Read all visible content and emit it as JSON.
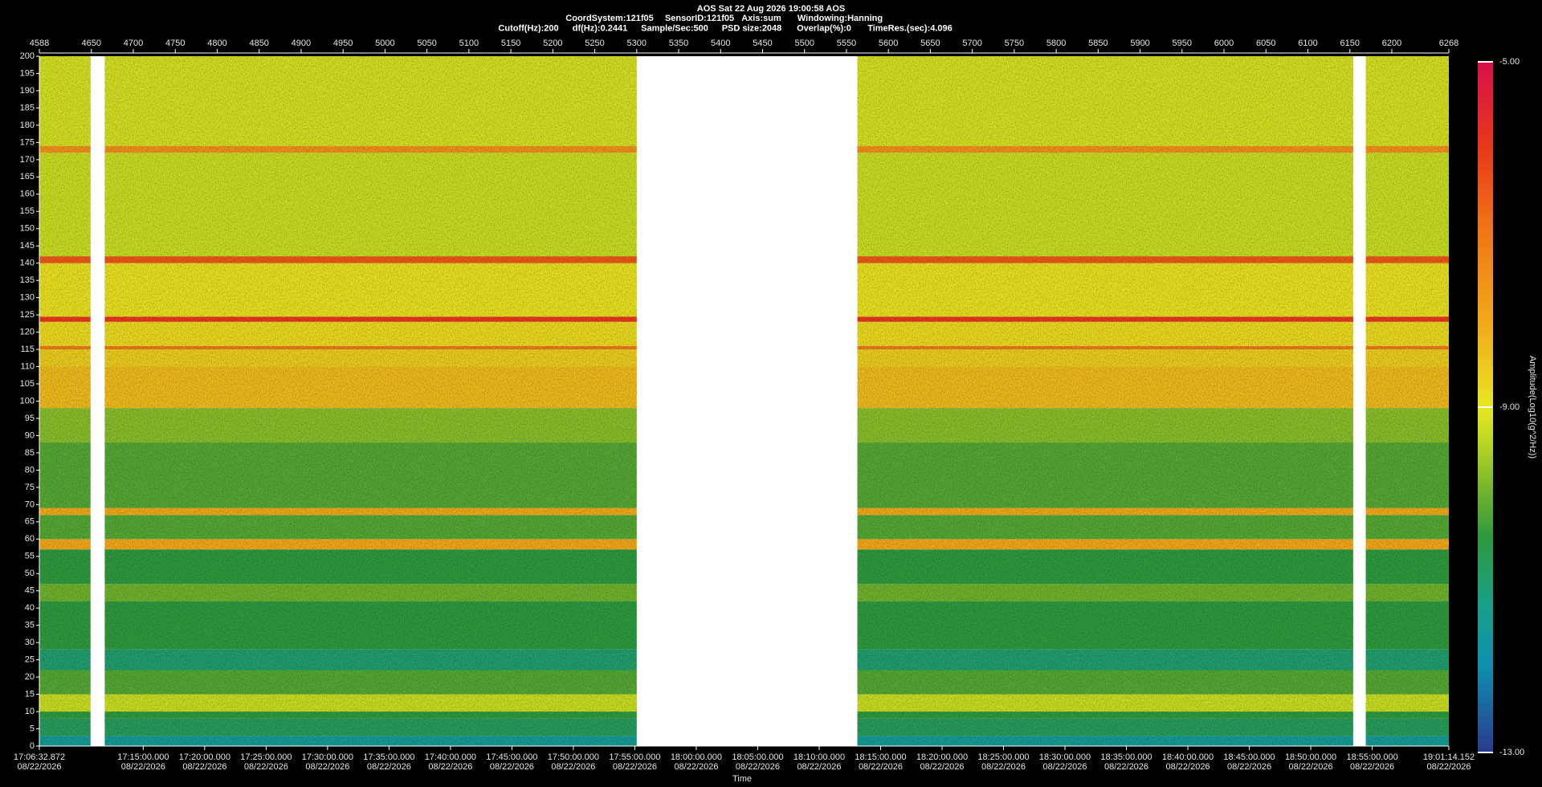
{
  "chart_data": {
    "type": "spectrogram",
    "title": "AOS  Sat 22 Aug 2026 19:00:58  AOS",
    "info_lines": [
      [
        "CoordSystem:121f05",
        "SensorID:121f05",
        "Axis:sum",
        "Windowing:Hanning"
      ],
      [
        "Cutoff(Hz):200",
        "df(Hz):0.2441",
        "Sample/Sec:500",
        "PSD size:2048",
        "Overlap(%):0",
        "TimeRes.(sec):4.096"
      ]
    ],
    "xlabel": "Time",
    "colorbar_label": "Amplitude(Log10(g^2/Hz))",
    "xlim": [
      4588,
      6268
    ],
    "xticks": [
      4588,
      4650,
      4700,
      4750,
      4800,
      4850,
      4900,
      4950,
      5000,
      5050,
      5100,
      5150,
      5200,
      5250,
      5300,
      5350,
      5400,
      5450,
      5500,
      5550,
      5600,
      5650,
      5700,
      5750,
      5800,
      5850,
      5900,
      5950,
      6000,
      6050,
      6100,
      6150,
      6200,
      6268
    ],
    "time_lim": [
      "17:06:32.872",
      "19:01:14.152"
    ],
    "time_ticks": [
      {
        "time": "17:06:32.872",
        "date": "08/22/2026"
      },
      {
        "time": "17:15:00.000",
        "date": "08/22/2026"
      },
      {
        "time": "17:20:00.000",
        "date": "08/22/2026"
      },
      {
        "time": "17:25:00.000",
        "date": "08/22/2026"
      },
      {
        "time": "17:30:00.000",
        "date": "08/22/2026"
      },
      {
        "time": "17:35:00.000",
        "date": "08/22/2026"
      },
      {
        "time": "17:40:00.000",
        "date": "08/22/2026"
      },
      {
        "time": "17:45:00.000",
        "date": "08/22/2026"
      },
      {
        "time": "17:50:00.000",
        "date": "08/22/2026"
      },
      {
        "time": "17:55:00.000",
        "date": "08/22/2026"
      },
      {
        "time": "18:00:00.000",
        "date": "08/22/2026"
      },
      {
        "time": "18:05:00.000",
        "date": "08/22/2026"
      },
      {
        "time": "18:10:00.000",
        "date": "08/22/2026"
      },
      {
        "time": "18:15:00.000",
        "date": "08/22/2026"
      },
      {
        "time": "18:20:00.000",
        "date": "08/22/2026"
      },
      {
        "time": "18:25:00.000",
        "date": "08/22/2026"
      },
      {
        "time": "18:30:00.000",
        "date": "08/22/2026"
      },
      {
        "time": "18:35:00.000",
        "date": "08/22/2026"
      },
      {
        "time": "18:40:00.000",
        "date": "08/22/2026"
      },
      {
        "time": "18:45:00.000",
        "date": "08/22/2026"
      },
      {
        "time": "18:50:00.000",
        "date": "08/22/2026"
      },
      {
        "time": "18:55:00.000",
        "date": "08/22/2026"
      },
      {
        "time": "19:01:14.152",
        "date": "08/22/2026"
      }
    ],
    "ylim": [
      0,
      200
    ],
    "yticks": [
      0,
      5,
      10,
      15,
      20,
      25,
      30,
      35,
      40,
      45,
      50,
      55,
      60,
      65,
      70,
      75,
      80,
      85,
      90,
      95,
      100,
      105,
      110,
      115,
      120,
      125,
      130,
      135,
      140,
      145,
      150,
      155,
      160,
      165,
      170,
      175,
      180,
      185,
      190,
      195,
      200
    ],
    "clim": [
      -13,
      -5
    ],
    "cticks": [
      {
        "value": -5,
        "label": "-5.00"
      },
      {
        "value": -9,
        "label": "-9.00"
      },
      {
        "value": -13,
        "label": "-13.00"
      }
    ],
    "colormap": [
      {
        "level": -13,
        "color": "#2a3a8c"
      },
      {
        "level": -12,
        "color": "#0e8fb0"
      },
      {
        "level": -11.3,
        "color": "#19a08a"
      },
      {
        "level": -10.5,
        "color": "#2e9a3e"
      },
      {
        "level": -10,
        "color": "#6fb22e"
      },
      {
        "level": -9.3,
        "color": "#c8dd22"
      },
      {
        "level": -9,
        "color": "#e8e621"
      },
      {
        "level": -8,
        "color": "#f2a81a"
      },
      {
        "level": -7,
        "color": "#f07a16"
      },
      {
        "level": -6,
        "color": "#e8381a"
      },
      {
        "level": -5,
        "color": "#d8104a"
      }
    ],
    "segments": [
      [
        4588,
        4649
      ],
      [
        4666,
        5300
      ],
      [
        5563,
        6154
      ],
      [
        6169,
        6268
      ]
    ],
    "bands": [
      {
        "from": 0,
        "to": 3,
        "level": -11.5
      },
      {
        "from": 3,
        "to": 8,
        "level": -10.8
      },
      {
        "from": 8,
        "to": 10,
        "level": -10.5
      },
      {
        "from": 10,
        "to": 15,
        "level": -9.3
      },
      {
        "from": 15,
        "to": 22,
        "level": -10.2
      },
      {
        "from": 22,
        "to": 28,
        "level": -11
      },
      {
        "from": 28,
        "to": 42,
        "level": -10.5
      },
      {
        "from": 42,
        "to": 47,
        "level": -10
      },
      {
        "from": 47,
        "to": 57,
        "level": -10.5
      },
      {
        "from": 57,
        "to": 60,
        "level": -8
      },
      {
        "from": 60,
        "to": 67,
        "level": -10.2
      },
      {
        "from": 67,
        "to": 69,
        "level": -8
      },
      {
        "from": 69,
        "to": 88,
        "level": -10.2
      },
      {
        "from": 88,
        "to": 98,
        "level": -9.8
      },
      {
        "from": 98,
        "to": 110,
        "level": -8.3
      },
      {
        "from": 110,
        "to": 115,
        "level": -8.6
      },
      {
        "from": 115,
        "to": 116,
        "level": -7
      },
      {
        "from": 116,
        "to": 123,
        "level": -8.8
      },
      {
        "from": 123,
        "to": 124.5,
        "level": -6
      },
      {
        "from": 124.5,
        "to": 140,
        "level": -8.9
      },
      {
        "from": 140,
        "to": 142,
        "level": -6.5
      },
      {
        "from": 142,
        "to": 172,
        "level": -9.3
      },
      {
        "from": 172,
        "to": 174,
        "level": -7.5
      },
      {
        "from": 174,
        "to": 200,
        "level": -9.2
      }
    ]
  }
}
